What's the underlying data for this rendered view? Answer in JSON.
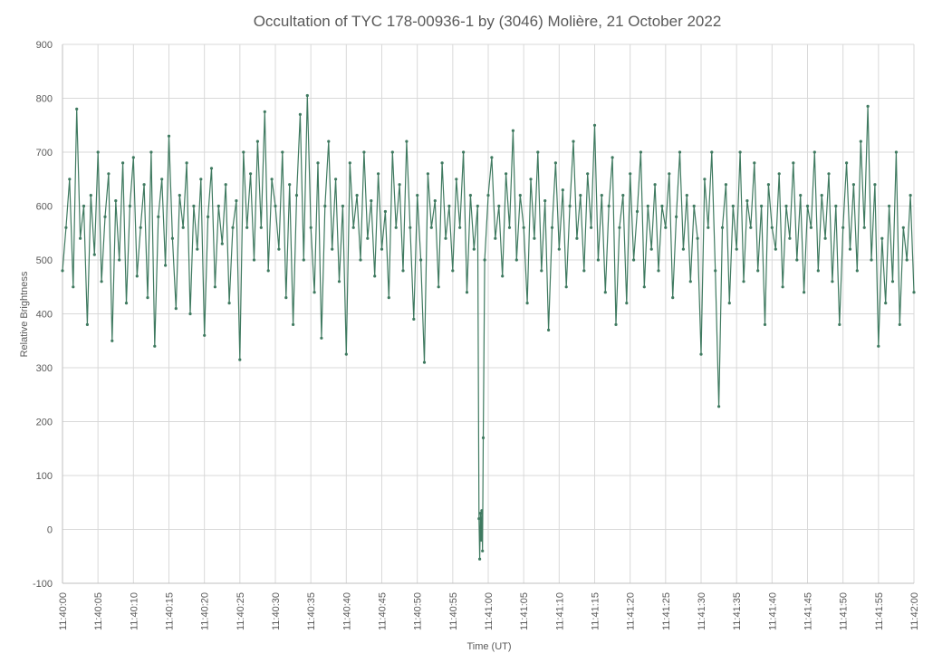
{
  "chart_data": {
    "type": "line",
    "title": "Occultation of TYC 178-00936-1 by (3046) Molière, 21 October 2022",
    "xlabel": "Time (UT)",
    "ylabel": "Relative Brightness",
    "ylim": [
      -100,
      900
    ],
    "yticks": [
      -100,
      0,
      100,
      200,
      300,
      400,
      500,
      600,
      700,
      800,
      900
    ],
    "xlim": [
      "11:40:00",
      "11:42:00"
    ],
    "xtick_labels": [
      "11:40:00",
      "11:40:05",
      "11:40:10",
      "11:40:15",
      "11:40:20",
      "11:40:25",
      "11:40:30",
      "11:40:35",
      "11:40:40",
      "11:40:45",
      "11:40:50",
      "11:40:55",
      "11:41:00",
      "11:41:05",
      "11:41:10",
      "11:41:15",
      "11:41:20",
      "11:41:25",
      "11:41:30",
      "11:41:35",
      "11:41:40",
      "11:41:45",
      "11:41:50",
      "11:41:55",
      "11:42:00"
    ],
    "grid": true,
    "legend": "none",
    "series": [
      {
        "color": "#3f7a60",
        "marker": "circle",
        "points": [
          [
            "11:40:00.0",
            480
          ],
          [
            "11:40:00.5",
            560
          ],
          [
            "11:40:01.0",
            650
          ],
          [
            "11:40:01.5",
            450
          ],
          [
            "11:40:02.0",
            780
          ],
          [
            "11:40:02.5",
            540
          ],
          [
            "11:40:03.0",
            600
          ],
          [
            "11:40:03.5",
            380
          ],
          [
            "11:40:04.0",
            620
          ],
          [
            "11:40:04.5",
            510
          ],
          [
            "11:40:05.0",
            700
          ],
          [
            "11:40:05.5",
            460
          ],
          [
            "11:40:06.0",
            580
          ],
          [
            "11:40:06.5",
            660
          ],
          [
            "11:40:07.0",
            350
          ],
          [
            "11:40:07.5",
            610
          ],
          [
            "11:40:08.0",
            500
          ],
          [
            "11:40:08.5",
            680
          ],
          [
            "11:40:09.0",
            420
          ],
          [
            "11:40:09.5",
            600
          ],
          [
            "11:40:10.0",
            690
          ],
          [
            "11:40:10.5",
            470
          ],
          [
            "11:40:11.0",
            560
          ],
          [
            "11:40:11.5",
            640
          ],
          [
            "11:40:12.0",
            430
          ],
          [
            "11:40:12.5",
            700
          ],
          [
            "11:40:13.0",
            340
          ],
          [
            "11:40:13.5",
            580
          ],
          [
            "11:40:14.0",
            650
          ],
          [
            "11:40:14.5",
            490
          ],
          [
            "11:40:15.0",
            730
          ],
          [
            "11:40:15.5",
            540
          ],
          [
            "11:40:16.0",
            410
          ],
          [
            "11:40:16.5",
            620
          ],
          [
            "11:40:17.0",
            560
          ],
          [
            "11:40:17.5",
            680
          ],
          [
            "11:40:18.0",
            400
          ],
          [
            "11:40:18.5",
            600
          ],
          [
            "11:40:19.0",
            520
          ],
          [
            "11:40:19.5",
            650
          ],
          [
            "11:40:20.0",
            360
          ],
          [
            "11:40:20.5",
            580
          ],
          [
            "11:40:21.0",
            670
          ],
          [
            "11:40:21.5",
            450
          ],
          [
            "11:40:22.0",
            600
          ],
          [
            "11:40:22.5",
            530
          ],
          [
            "11:40:23.0",
            640
          ],
          [
            "11:40:23.5",
            420
          ],
          [
            "11:40:24.0",
            560
          ],
          [
            "11:40:24.5",
            610
          ],
          [
            "11:40:25.0",
            315
          ],
          [
            "11:40:25.5",
            700
          ],
          [
            "11:40:26.0",
            560
          ],
          [
            "11:40:26.5",
            660
          ],
          [
            "11:40:27.0",
            500
          ],
          [
            "11:40:27.5",
            720
          ],
          [
            "11:40:28.0",
            560
          ],
          [
            "11:40:28.5",
            775
          ],
          [
            "11:40:29.0",
            480
          ],
          [
            "11:40:29.5",
            650
          ],
          [
            "11:40:30.0",
            600
          ],
          [
            "11:40:30.5",
            520
          ],
          [
            "11:40:31.0",
            700
          ],
          [
            "11:40:31.5",
            430
          ],
          [
            "11:40:32.0",
            640
          ],
          [
            "11:40:32.5",
            380
          ],
          [
            "11:40:33.0",
            620
          ],
          [
            "11:40:33.5",
            770
          ],
          [
            "11:40:34.0",
            500
          ],
          [
            "11:40:34.5",
            805
          ],
          [
            "11:40:35.0",
            560
          ],
          [
            "11:40:35.5",
            440
          ],
          [
            "11:40:36.0",
            680
          ],
          [
            "11:40:36.5",
            355
          ],
          [
            "11:40:37.0",
            600
          ],
          [
            "11:40:37.5",
            720
          ],
          [
            "11:40:38.0",
            520
          ],
          [
            "11:40:38.5",
            650
          ],
          [
            "11:40:39.0",
            460
          ],
          [
            "11:40:39.5",
            600
          ],
          [
            "11:40:40.0",
            325
          ],
          [
            "11:40:40.5",
            680
          ],
          [
            "11:40:41.0",
            560
          ],
          [
            "11:40:41.5",
            620
          ],
          [
            "11:40:42.0",
            500
          ],
          [
            "11:40:42.5",
            700
          ],
          [
            "11:40:43.0",
            540
          ],
          [
            "11:40:43.5",
            610
          ],
          [
            "11:40:44.0",
            470
          ],
          [
            "11:40:44.5",
            660
          ],
          [
            "11:40:45.0",
            520
          ],
          [
            "11:40:45.5",
            590
          ],
          [
            "11:40:46.0",
            430
          ],
          [
            "11:40:46.5",
            700
          ],
          [
            "11:40:47.0",
            560
          ],
          [
            "11:40:47.5",
            640
          ],
          [
            "11:40:48.0",
            480
          ],
          [
            "11:40:48.5",
            720
          ],
          [
            "11:40:49.0",
            560
          ],
          [
            "11:40:49.5",
            390
          ],
          [
            "11:40:50.0",
            620
          ],
          [
            "11:40:50.5",
            500
          ],
          [
            "11:40:51.0",
            310
          ],
          [
            "11:40:51.5",
            660
          ],
          [
            "11:40:52.0",
            560
          ],
          [
            "11:40:52.5",
            610
          ],
          [
            "11:40:53.0",
            450
          ],
          [
            "11:40:53.5",
            680
          ],
          [
            "11:40:54.0",
            540
          ],
          [
            "11:40:54.5",
            600
          ],
          [
            "11:40:55.0",
            480
          ],
          [
            "11:40:55.5",
            650
          ],
          [
            "11:40:56.0",
            560
          ],
          [
            "11:40:56.5",
            700
          ],
          [
            "11:40:57.0",
            440
          ],
          [
            "11:40:57.5",
            620
          ],
          [
            "11:40:58.0",
            520
          ],
          [
            "11:40:58.5",
            600
          ],
          [
            "11:40:58.7",
            20
          ],
          [
            "11:40:58.8",
            -55
          ],
          [
            "11:40:58.9",
            30
          ],
          [
            "11:40:59.0",
            -20
          ],
          [
            "11:40:59.1",
            35
          ],
          [
            "11:40:59.2",
            -40
          ],
          [
            "11:40:59.3",
            170
          ],
          [
            "11:40:59.5",
            500
          ],
          [
            "11:41:00.0",
            620
          ],
          [
            "11:41:00.5",
            690
          ],
          [
            "11:41:01.0",
            540
          ],
          [
            "11:41:01.5",
            600
          ],
          [
            "11:41:02.0",
            470
          ],
          [
            "11:41:02.5",
            660
          ],
          [
            "11:41:03.0",
            560
          ],
          [
            "11:41:03.5",
            740
          ],
          [
            "11:41:04.0",
            500
          ],
          [
            "11:41:04.5",
            620
          ],
          [
            "11:41:05.0",
            560
          ],
          [
            "11:41:05.5",
            420
          ],
          [
            "11:41:06.0",
            650
          ],
          [
            "11:41:06.5",
            540
          ],
          [
            "11:41:07.0",
            700
          ],
          [
            "11:41:07.5",
            480
          ],
          [
            "11:41:08.0",
            610
          ],
          [
            "11:41:08.5",
            370
          ],
          [
            "11:41:09.0",
            560
          ],
          [
            "11:41:09.5",
            680
          ],
          [
            "11:41:10.0",
            520
          ],
          [
            "11:41:10.5",
            630
          ],
          [
            "11:41:11.0",
            450
          ],
          [
            "11:41:11.5",
            600
          ],
          [
            "11:41:12.0",
            720
          ],
          [
            "11:41:12.5",
            540
          ],
          [
            "11:41:13.0",
            620
          ],
          [
            "11:41:13.5",
            480
          ],
          [
            "11:41:14.0",
            660
          ],
          [
            "11:41:14.5",
            560
          ],
          [
            "11:41:15.0",
            750
          ],
          [
            "11:41:15.5",
            500
          ],
          [
            "11:41:16.0",
            620
          ],
          [
            "11:41:16.5",
            440
          ],
          [
            "11:41:17.0",
            600
          ],
          [
            "11:41:17.5",
            690
          ],
          [
            "11:41:18.0",
            380
          ],
          [
            "11:41:18.5",
            560
          ],
          [
            "11:41:19.0",
            620
          ],
          [
            "11:41:19.5",
            420
          ],
          [
            "11:41:20.0",
            660
          ],
          [
            "11:41:20.5",
            500
          ],
          [
            "11:41:21.0",
            590
          ],
          [
            "11:41:21.5",
            700
          ],
          [
            "11:41:22.0",
            450
          ],
          [
            "11:41:22.5",
            600
          ],
          [
            "11:41:23.0",
            520
          ],
          [
            "11:41:23.5",
            640
          ],
          [
            "11:41:24.0",
            480
          ],
          [
            "11:41:24.5",
            600
          ],
          [
            "11:41:25.0",
            560
          ],
          [
            "11:41:25.5",
            660
          ],
          [
            "11:41:26.0",
            430
          ],
          [
            "11:41:26.5",
            580
          ],
          [
            "11:41:27.0",
            700
          ],
          [
            "11:41:27.5",
            520
          ],
          [
            "11:41:28.0",
            620
          ],
          [
            "11:41:28.5",
            460
          ],
          [
            "11:41:29.0",
            600
          ],
          [
            "11:41:29.5",
            540
          ],
          [
            "11:41:30.0",
            325
          ],
          [
            "11:41:30.5",
            650
          ],
          [
            "11:41:31.0",
            560
          ],
          [
            "11:41:31.5",
            700
          ],
          [
            "11:41:32.0",
            480
          ],
          [
            "11:41:32.5",
            228
          ],
          [
            "11:41:33.0",
            560
          ],
          [
            "11:41:33.5",
            640
          ],
          [
            "11:41:34.0",
            420
          ],
          [
            "11:41:34.5",
            600
          ],
          [
            "11:41:35.0",
            520
          ],
          [
            "11:41:35.5",
            700
          ],
          [
            "11:41:36.0",
            460
          ],
          [
            "11:41:36.5",
            610
          ],
          [
            "11:41:37.0",
            560
          ],
          [
            "11:41:37.5",
            680
          ],
          [
            "11:41:38.0",
            480
          ],
          [
            "11:41:38.5",
            600
          ],
          [
            "11:41:39.0",
            380
          ],
          [
            "11:41:39.5",
            640
          ],
          [
            "11:41:40.0",
            560
          ],
          [
            "11:41:40.5",
            520
          ],
          [
            "11:41:41.0",
            660
          ],
          [
            "11:41:41.5",
            450
          ],
          [
            "11:41:42.0",
            600
          ],
          [
            "11:41:42.5",
            540
          ],
          [
            "11:41:43.0",
            680
          ],
          [
            "11:41:43.5",
            500
          ],
          [
            "11:41:44.0",
            620
          ],
          [
            "11:41:44.5",
            440
          ],
          [
            "11:41:45.0",
            600
          ],
          [
            "11:41:45.5",
            560
          ],
          [
            "11:41:46.0",
            700
          ],
          [
            "11:41:46.5",
            480
          ],
          [
            "11:41:47.0",
            620
          ],
          [
            "11:41:47.5",
            540
          ],
          [
            "11:41:48.0",
            660
          ],
          [
            "11:41:48.5",
            460
          ],
          [
            "11:41:49.0",
            600
          ],
          [
            "11:41:49.5",
            380
          ],
          [
            "11:41:50.0",
            560
          ],
          [
            "11:41:50.5",
            680
          ],
          [
            "11:41:51.0",
            520
          ],
          [
            "11:41:51.5",
            640
          ],
          [
            "11:41:52.0",
            480
          ],
          [
            "11:41:52.5",
            720
          ],
          [
            "11:41:53.0",
            560
          ],
          [
            "11:41:53.5",
            785
          ],
          [
            "11:41:54.0",
            500
          ],
          [
            "11:41:54.5",
            640
          ],
          [
            "11:41:55.0",
            340
          ],
          [
            "11:41:55.5",
            540
          ],
          [
            "11:41:56.0",
            420
          ],
          [
            "11:41:56.5",
            600
          ],
          [
            "11:41:57.0",
            460
          ],
          [
            "11:41:57.5",
            700
          ],
          [
            "11:41:58.0",
            380
          ],
          [
            "11:41:58.5",
            560
          ],
          [
            "11:41:59.0",
            500
          ],
          [
            "11:41:59.5",
            620
          ],
          [
            "11:42:00.0",
            440
          ]
        ]
      }
    ]
  }
}
